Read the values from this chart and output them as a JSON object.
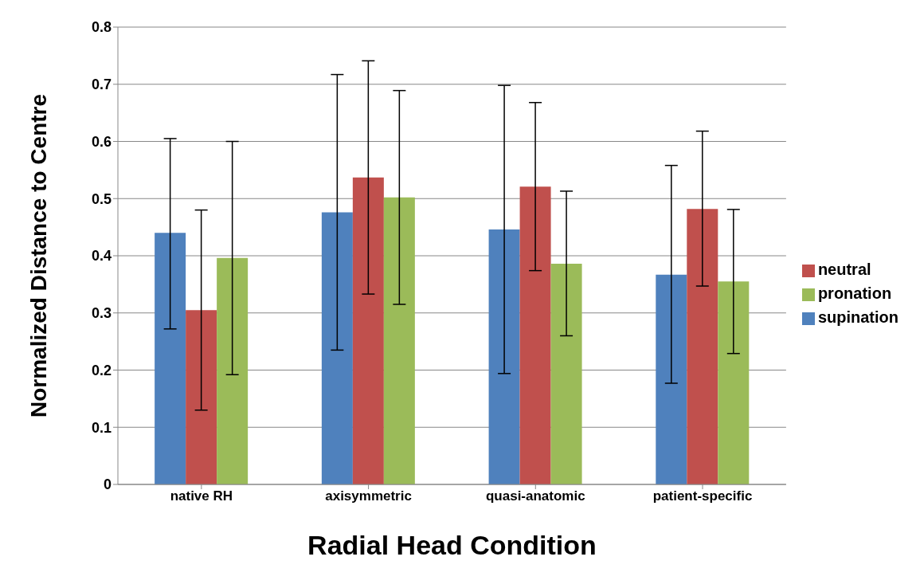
{
  "chart_data": {
    "type": "bar",
    "xlabel": "Radial Head Condition",
    "ylabel": "Normalized Distance to Centre",
    "categories": [
      "native RH",
      "axisymmetric",
      "quasi-anatomic",
      "patient-specific"
    ],
    "series": [
      {
        "name": "supination",
        "color": "#4f81bd",
        "values": [
          0.44,
          0.476,
          0.446,
          0.367
        ],
        "errors": [
          [
            0.272,
            0.605
          ],
          [
            0.235,
            0.717
          ],
          [
            0.194,
            0.698
          ],
          [
            0.177,
            0.558
          ]
        ]
      },
      {
        "name": "neutral",
        "color": "#c0504d",
        "values": [
          0.305,
          0.537,
          0.521,
          0.482
        ],
        "errors": [
          [
            0.13,
            0.48
          ],
          [
            0.333,
            0.741
          ],
          [
            0.374,
            0.668
          ],
          [
            0.347,
            0.618
          ]
        ]
      },
      {
        "name": "pronation",
        "color": "#9bbb59",
        "values": [
          0.396,
          0.502,
          0.386,
          0.355
        ],
        "errors": [
          [
            0.192,
            0.6
          ],
          [
            0.315,
            0.689
          ],
          [
            0.26,
            0.513
          ],
          [
            0.229,
            0.481
          ]
        ]
      }
    ],
    "ylim": [
      0,
      0.8
    ],
    "yticks": [
      0,
      0.1,
      0.2,
      0.3,
      0.4,
      0.5,
      0.6,
      0.7,
      0.8
    ],
    "grid": "y",
    "legend": "right"
  }
}
